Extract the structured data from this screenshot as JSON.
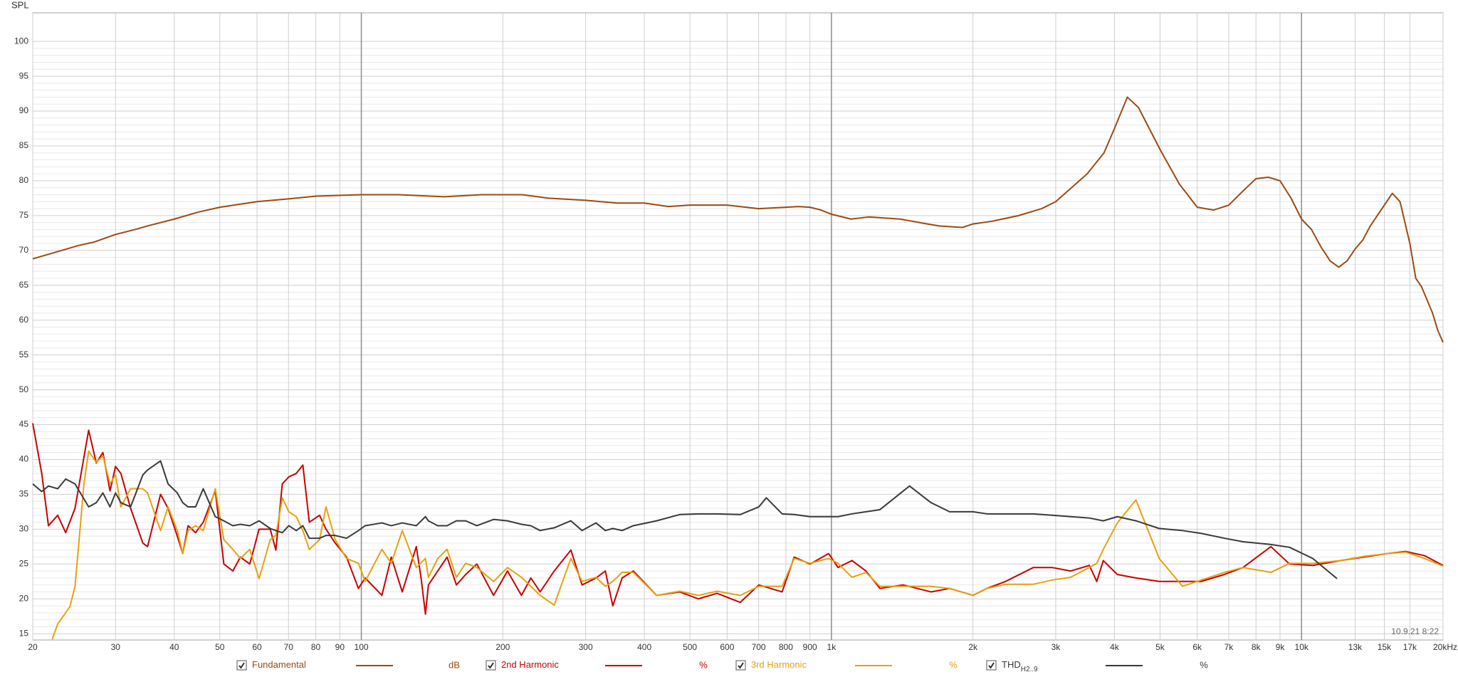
{
  "chart_data": {
    "type": "line",
    "y_label": "SPL",
    "timestamp": "10.9.21 8:22",
    "xscale": "log",
    "grid": true,
    "xlim": [
      20,
      20000
    ],
    "ylim": [
      14.1,
      104.1
    ],
    "yticks": [
      15,
      20,
      25,
      30,
      35,
      40,
      45,
      50,
      55,
      60,
      65,
      70,
      75,
      80,
      85,
      90,
      95,
      100
    ],
    "xticks": [
      20,
      30,
      40,
      50,
      60,
      70,
      80,
      90,
      100,
      200,
      300,
      400,
      500,
      600,
      700,
      800,
      900,
      {
        "value": 1000,
        "label": "1k"
      },
      {
        "value": 2000,
        "label": "2k"
      },
      {
        "value": 3000,
        "label": "3k"
      },
      {
        "value": 4000,
        "label": "4k"
      },
      {
        "value": 5000,
        "label": "5k"
      },
      {
        "value": 6000,
        "label": "6k"
      },
      {
        "value": 7000,
        "label": "7k"
      },
      {
        "value": 8000,
        "label": "8k"
      },
      {
        "value": 9000,
        "label": "9k"
      },
      {
        "value": 10000,
        "label": "10k"
      },
      {
        "value": 13000,
        "label": "13k"
      },
      {
        "value": 15000,
        "label": "15k"
      },
      {
        "value": 17000,
        "label": "17k"
      },
      {
        "value": 20000,
        "label": "20kHz"
      }
    ],
    "series": [
      {
        "name": "Fundamental",
        "unit": "dB",
        "color": "#9c4a12",
        "x": [
          20,
          22,
          25,
          27,
          30,
          33,
          35,
          40,
          45,
          50,
          60,
          70,
          80,
          100,
          120,
          150,
          180,
          220,
          250,
          300,
          350,
          400,
          450,
          500,
          600,
          700,
          800,
          850,
          900,
          950,
          1000,
          1100,
          1200,
          1400,
          1600,
          1700,
          1900,
          2000,
          2200,
          2500,
          2800,
          3000,
          3500,
          3800,
          4000,
          4260,
          4500,
          5000,
          5500,
          6000,
          6500,
          7000,
          7500,
          8000,
          8500,
          9000,
          9500,
          10000,
          10500,
          11000,
          11500,
          12000,
          12500,
          13000,
          13500,
          14000,
          15000,
          15600,
          16200,
          17000,
          17500,
          18000,
          19000,
          19500,
          20000
        ],
        "values": [
          68.8,
          69.6,
          70.7,
          71.2,
          72.3,
          73.0,
          73.5,
          74.5,
          75.5,
          76.2,
          77.0,
          77.4,
          77.8,
          78.0,
          78.0,
          77.7,
          78.0,
          78.0,
          77.5,
          77.2,
          76.8,
          76.8,
          76.3,
          76.5,
          76.5,
          76.0,
          76.2,
          76.3,
          76.2,
          75.8,
          75.2,
          74.5,
          74.8,
          74.5,
          73.8,
          73.5,
          73.3,
          73.8,
          74.2,
          75.0,
          76.0,
          77.0,
          81.0,
          84.0,
          87.5,
          92.0,
          90.5,
          84.5,
          79.5,
          76.2,
          75.8,
          76.5,
          78.5,
          80.3,
          80.5,
          80.0,
          77.5,
          74.5,
          73.0,
          70.5,
          68.5,
          67.6,
          68.5,
          70.2,
          71.5,
          73.5,
          76.5,
          78.2,
          77.0,
          71.0,
          66.0,
          64.8,
          61.0,
          58.5,
          56.8
        ]
      },
      {
        "name": "2nd Harmonic",
        "unit": "%",
        "color": "#c80000",
        "x": [
          20,
          20.9,
          21.6,
          22.6,
          23.5,
          24.6,
          26.3,
          27.3,
          28.2,
          29.2,
          30,
          30.8,
          32.3,
          34.3,
          35.1,
          37.4,
          38.8,
          40.6,
          41.7,
          42.8,
          44.4,
          46.1,
          48.9,
          51,
          53.3,
          55.3,
          57.9,
          60.6,
          64,
          65.8,
          67.9,
          70.1,
          72.7,
          75.1,
          77.5,
          81.5,
          84.1,
          88,
          93,
          98.6,
          101.9,
          110.6,
          115.8,
          122.2,
          130.9,
          134,
          136.9,
          138.9,
          145.4,
          152.2,
          159.3,
          166.7,
          176.1,
          191.1,
          204.6,
          219.1,
          229.4,
          240.1,
          257.2,
          279.1,
          294.8,
          315.7,
          330.4,
          342.7,
          358.7,
          378.9,
          424.6,
          475.6,
          520.9,
          570.8,
          639.7,
          700.7,
          785.4,
          833.3,
          900.6,
          986.4,
          1033,
          1106,
          1184,
          1268,
          1421,
          1629,
          1784,
          2000,
          2141,
          2346,
          2689,
          2946,
          3228,
          3537,
          3668,
          3787,
          4057,
          4444,
          4980,
          5582,
          6116,
          6853,
          7508,
          8606,
          9428,
          10566,
          12117,
          13578,
          15214,
          16669,
          18259,
          20000
        ],
        "values": [
          45.2,
          38,
          30.5,
          32,
          29.5,
          33,
          44.2,
          39.5,
          41,
          35.5,
          39,
          38,
          33,
          28,
          27.5,
          35,
          33,
          29,
          26.5,
          30.5,
          29.5,
          31,
          35.5,
          25,
          24,
          26,
          25,
          30,
          30,
          27,
          36.5,
          37.5,
          38,
          39.2,
          31,
          32,
          30,
          28,
          26,
          21.5,
          23,
          20.5,
          26,
          21,
          27.5,
          23,
          17.8,
          22,
          24,
          26,
          22,
          23.5,
          25,
          20.5,
          24,
          20.5,
          23,
          21,
          24,
          27,
          22,
          23,
          24,
          19,
          23,
          24,
          20.5,
          21,
          20,
          20.8,
          19.5,
          22,
          21,
          26,
          25,
          26.5,
          24.5,
          25.5,
          24,
          21.5,
          22,
          21,
          21.5,
          20.5,
          21.5,
          22.5,
          24.5,
          24.5,
          24,
          24.8,
          22.5,
          25.5,
          23.5,
          23,
          22.5,
          22.5,
          22.5,
          23.5,
          24.5,
          27.5,
          25,
          24.8,
          25.5,
          26,
          26.5,
          26.8,
          26.2,
          24.8
        ]
      },
      {
        "name": "3rd Harmonic",
        "unit": "%",
        "color": "#e8a010",
        "x": [
          22,
          22.6,
          23.5,
          24,
          24.6,
          25.1,
          25.7,
          26.3,
          27.3,
          28.2,
          29.2,
          30,
          30.8,
          32.3,
          34.3,
          35.1,
          37.4,
          38.8,
          40.6,
          41.7,
          42.8,
          44.4,
          46.1,
          48.9,
          51,
          53.3,
          55.3,
          57.9,
          60.6,
          64,
          65.8,
          67.9,
          70.1,
          72.7,
          75.1,
          77.5,
          81.5,
          84.1,
          88,
          93,
          98.6,
          101.9,
          110.6,
          115.8,
          122.2,
          130.9,
          136.9,
          138.9,
          145.4,
          152.2,
          159.3,
          166.7,
          176.1,
          191.1,
          204.6,
          219.1,
          229.4,
          240.1,
          257.2,
          279.1,
          294.8,
          315.7,
          330.4,
          342.7,
          358.7,
          378.9,
          424.6,
          475.6,
          520.9,
          570.8,
          639.7,
          700.7,
          785.4,
          833.3,
          900.6,
          986.4,
          1033,
          1106,
          1184,
          1268,
          1421,
          1629,
          1784,
          2000,
          2141,
          2346,
          2689,
          2946,
          3228,
          3537,
          3668,
          3787,
          4057,
          4444,
          4980,
          5582,
          6116,
          6853,
          7508,
          8606,
          9428,
          10566,
          12117,
          13578,
          15214,
          16669,
          18259,
          20000
        ],
        "values": [
          14.2,
          16.4,
          18.0,
          18.9,
          21.8,
          28.5,
          36.5,
          41.2,
          39.6,
          40.5,
          36.5,
          37.8,
          33.2,
          35.8,
          35.8,
          35.2,
          29.8,
          33.2,
          29.8,
          26.5,
          29.8,
          30.5,
          29.8,
          35.8,
          28.5,
          27.1,
          25.8,
          27.1,
          22.9,
          28.5,
          29.1,
          34.5,
          32.5,
          31.8,
          29.8,
          27.1,
          28.5,
          33.2,
          28.5,
          25.8,
          25.1,
          22.5,
          27.1,
          25.1,
          29.8,
          24.5,
          25.8,
          23.1,
          25.8,
          27.1,
          23.1,
          25.1,
          24.5,
          22.5,
          24.5,
          23.1,
          21.8,
          20.5,
          19.1,
          25.8,
          22.5,
          23.1,
          21.8,
          22.5,
          23.8,
          23.8,
          20.5,
          21.1,
          20.5,
          21.1,
          20.5,
          21.8,
          21.8,
          25.8,
          25.1,
          25.8,
          25.1,
          23.1,
          23.8,
          21.8,
          21.8,
          21.8,
          21.5,
          20.5,
          21.5,
          22.1,
          22.1,
          22.7,
          23.1,
          24.5,
          25.1,
          27.1,
          30.9,
          34.2,
          25.8,
          21.8,
          22.7,
          23.8,
          24.5,
          23.8,
          25.1,
          25.1,
          25.5,
          26.1,
          26.5,
          26.7,
          25.8,
          24.7
        ]
      },
      {
        "name": "THD",
        "name_sub": "H2..9",
        "unit": "%",
        "color": "#3a3a3a",
        "x": [
          20,
          20.9,
          21.6,
          22.6,
          23.5,
          24.6,
          26.3,
          27.3,
          28.2,
          29.2,
          30,
          30.8,
          32.3,
          34.3,
          35.1,
          37.4,
          38.8,
          40.6,
          41.7,
          42.8,
          44.4,
          46.1,
          48.9,
          51,
          53.3,
          55.3,
          57.9,
          60.6,
          64,
          65.8,
          67.9,
          70.1,
          72.7,
          75.1,
          77.5,
          81.5,
          84.1,
          88,
          93,
          98.6,
          101.9,
          110.6,
          115.8,
          122.2,
          130.9,
          136.9,
          138.9,
          145.4,
          152.2,
          159.3,
          166.7,
          176.1,
          191.1,
          204.6,
          219.1,
          229.4,
          240.1,
          257.2,
          279.1,
          294.8,
          315.7,
          330.4,
          342.7,
          358.7,
          378.9,
          424.6,
          475.6,
          520.9,
          570.8,
          639.7,
          700.7,
          727,
          785.4,
          833.3,
          900.6,
          986.4,
          1033,
          1106,
          1184,
          1268,
          1466,
          1629,
          1784,
          2000,
          2141,
          2346,
          2689,
          2946,
          3228,
          3537,
          3787,
          4057,
          4444,
          4980,
          5582,
          6116,
          6853,
          7508,
          8606,
          9428,
          10566,
          11900
        ],
        "values": [
          36.5,
          35.4,
          36.2,
          35.8,
          37.2,
          36.5,
          33.2,
          33.8,
          35.2,
          33.2,
          35.2,
          33.8,
          33.2,
          37.8,
          38.5,
          39.8,
          36.5,
          35.2,
          33.8,
          33.2,
          33.2,
          35.8,
          31.8,
          31.2,
          30.5,
          30.7,
          30.5,
          31.2,
          30.1,
          29.8,
          29.5,
          30.5,
          29.8,
          30.5,
          28.7,
          28.7,
          29.1,
          29.1,
          28.7,
          29.8,
          30.5,
          30.9,
          30.5,
          30.9,
          30.5,
          31.8,
          31.2,
          30.5,
          30.5,
          31.2,
          31.2,
          30.5,
          31.4,
          31.2,
          30.7,
          30.5,
          29.8,
          30.2,
          31.2,
          29.8,
          30.9,
          29.8,
          30.1,
          29.8,
          30.5,
          31.2,
          32.1,
          32.2,
          32.2,
          32.1,
          33.2,
          34.5,
          32.2,
          32.1,
          31.8,
          31.8,
          31.8,
          32.2,
          32.5,
          32.8,
          36.2,
          33.8,
          32.5,
          32.5,
          32.2,
          32.2,
          32.2,
          32.0,
          31.8,
          31.6,
          31.2,
          31.8,
          31.2,
          30.1,
          29.8,
          29.4,
          28.7,
          28.2,
          27.8,
          27.4,
          25.8,
          22.9
        ]
      }
    ]
  }
}
